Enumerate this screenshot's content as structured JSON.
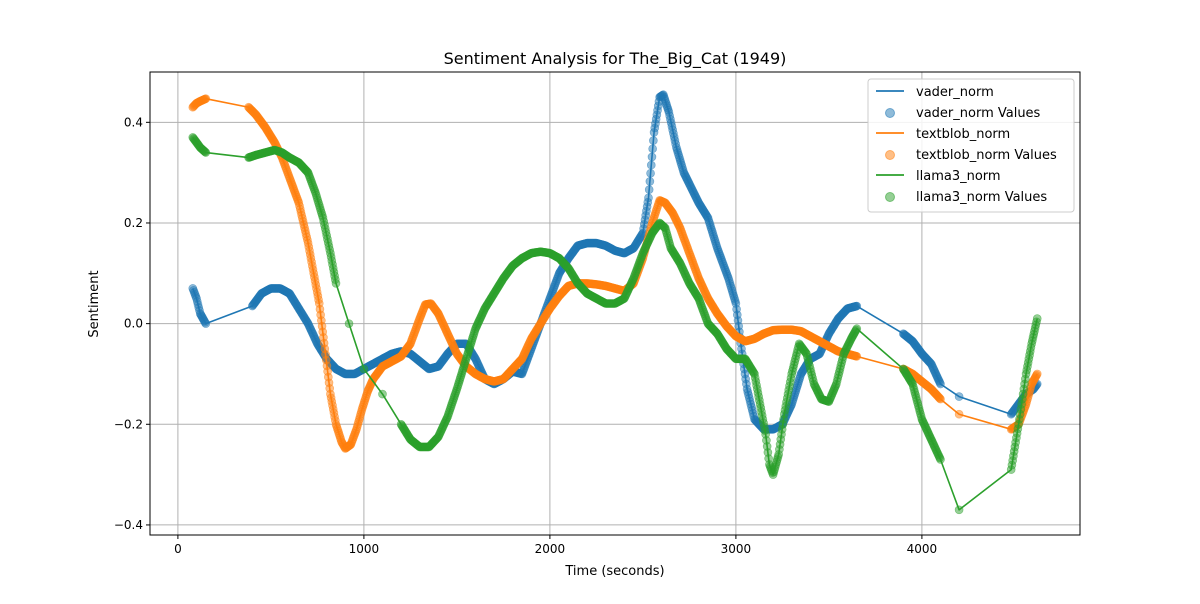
{
  "chart_data": {
    "type": "line",
    "title": "Sentiment Analysis for The_Big_Cat (1949)",
    "xlabel": "Time (seconds)",
    "ylabel": "Sentiment",
    "xlim": [
      -150,
      4850
    ],
    "ylim": [
      -0.42,
      0.5
    ],
    "xticks": [
      0,
      1000,
      2000,
      3000,
      4000
    ],
    "xtick_labels": [
      "0",
      "1000",
      "2000",
      "3000",
      "4000"
    ],
    "yticks": [
      -0.4,
      -0.2,
      0.0,
      0.2,
      0.4
    ],
    "ytick_labels": [
      "−0.4",
      "−0.2",
      "0.0",
      "0.2",
      "0.4"
    ],
    "grid": true,
    "legend_position": "top-right",
    "legend": [
      "vader_norm",
      "vader_norm Values",
      "textblob_norm",
      "textblob_norm Values",
      "llama3_norm",
      "llama3_norm Values"
    ],
    "series": [
      {
        "name": "vader_norm",
        "color": "#1f77b4",
        "x": [
          80,
          100,
          120,
          150,
          400,
          450,
          500,
          550,
          600,
          650,
          700,
          750,
          800,
          850,
          900,
          950,
          1000,
          1050,
          1100,
          1150,
          1200,
          1250,
          1300,
          1350,
          1400,
          1450,
          1500,
          1550,
          1600,
          1650,
          1700,
          1750,
          1800,
          1850,
          1900,
          1950,
          2000,
          2050,
          2100,
          2150,
          2200,
          2250,
          2300,
          2350,
          2400,
          2450,
          2500,
          2530,
          2560,
          2590,
          2610,
          2640,
          2680,
          2720,
          2760,
          2800,
          2850,
          2900,
          2960,
          3000,
          3030,
          3060,
          3100,
          3150,
          3200,
          3250,
          3300,
          3350,
          3400,
          3450,
          3500,
          3550,
          3600,
          3650,
          3900,
          3950,
          4000,
          4050,
          4100,
          4200,
          4480,
          4520,
          4560,
          4600,
          4620
        ],
        "y": [
          0.07,
          0.05,
          0.02,
          0.0,
          0.035,
          0.06,
          0.07,
          0.07,
          0.06,
          0.03,
          0.0,
          -0.04,
          -0.07,
          -0.09,
          -0.1,
          -0.1,
          -0.09,
          -0.08,
          -0.07,
          -0.06,
          -0.055,
          -0.06,
          -0.075,
          -0.09,
          -0.085,
          -0.06,
          -0.04,
          -0.04,
          -0.07,
          -0.11,
          -0.12,
          -0.11,
          -0.095,
          -0.1,
          -0.05,
          0.0,
          0.05,
          0.1,
          0.13,
          0.155,
          0.16,
          0.16,
          0.155,
          0.145,
          0.14,
          0.15,
          0.18,
          0.25,
          0.38,
          0.45,
          0.455,
          0.42,
          0.35,
          0.3,
          0.27,
          0.24,
          0.21,
          0.15,
          0.09,
          0.04,
          -0.05,
          -0.13,
          -0.19,
          -0.21,
          -0.21,
          -0.2,
          -0.16,
          -0.1,
          -0.07,
          -0.06,
          -0.02,
          0.01,
          0.03,
          0.035,
          -0.02,
          -0.035,
          -0.06,
          -0.08,
          -0.12,
          -0.145,
          -0.18,
          -0.16,
          -0.14,
          -0.13,
          -0.12
        ]
      },
      {
        "name": "textblob_norm",
        "color": "#ff7f0e",
        "x": [
          80,
          100,
          120,
          150,
          380,
          420,
          470,
          520,
          560,
          600,
          650,
          700,
          730,
          760,
          790,
          820,
          850,
          880,
          900,
          930,
          960,
          990,
          1020,
          1050,
          1100,
          1150,
          1200,
          1250,
          1300,
          1330,
          1360,
          1400,
          1450,
          1500,
          1550,
          1600,
          1650,
          1700,
          1750,
          1800,
          1850,
          1900,
          1950,
          2000,
          2050,
          2100,
          2150,
          2200,
          2250,
          2300,
          2350,
          2400,
          2450,
          2500,
          2550,
          2590,
          2620,
          2660,
          2700,
          2750,
          2800,
          2850,
          2900,
          2950,
          3000,
          3050,
          3100,
          3150,
          3200,
          3250,
          3300,
          3350,
          3400,
          3450,
          3500,
          3550,
          3600,
          3650,
          3900,
          3950,
          4000,
          4050,
          4100,
          4200,
          4480,
          4520,
          4560,
          4590,
          4620
        ],
        "y": [
          0.43,
          0.438,
          0.442,
          0.447,
          0.43,
          0.415,
          0.39,
          0.36,
          0.33,
          0.29,
          0.24,
          0.16,
          0.1,
          0.04,
          -0.05,
          -0.14,
          -0.2,
          -0.235,
          -0.248,
          -0.24,
          -0.21,
          -0.17,
          -0.135,
          -0.11,
          -0.085,
          -0.075,
          -0.065,
          -0.04,
          0.01,
          0.038,
          0.04,
          0.02,
          -0.02,
          -0.06,
          -0.085,
          -0.1,
          -0.11,
          -0.115,
          -0.11,
          -0.09,
          -0.07,
          -0.03,
          0.0,
          0.03,
          0.055,
          0.075,
          0.08,
          0.08,
          0.078,
          0.075,
          0.07,
          0.065,
          0.08,
          0.13,
          0.2,
          0.245,
          0.24,
          0.22,
          0.19,
          0.14,
          0.09,
          0.05,
          0.02,
          -0.005,
          -0.025,
          -0.035,
          -0.03,
          -0.02,
          -0.013,
          -0.012,
          -0.012,
          -0.015,
          -0.025,
          -0.035,
          -0.045,
          -0.055,
          -0.06,
          -0.065,
          -0.09,
          -0.1,
          -0.115,
          -0.13,
          -0.15,
          -0.18,
          -0.21,
          -0.2,
          -0.16,
          -0.12,
          -0.1
        ]
      },
      {
        "name": "llama3_norm",
        "color": "#2ca02c",
        "x": [
          80,
          100,
          120,
          150,
          380,
          420,
          470,
          520,
          560,
          600,
          650,
          700,
          740,
          780,
          820,
          850,
          920,
          1000,
          1100,
          1200,
          1250,
          1300,
          1350,
          1400,
          1450,
          1500,
          1550,
          1600,
          1650,
          1700,
          1750,
          1800,
          1850,
          1900,
          1950,
          2000,
          2050,
          2100,
          2150,
          2200,
          2250,
          2300,
          2350,
          2400,
          2450,
          2500,
          2550,
          2590,
          2620,
          2650,
          2700,
          2750,
          2800,
          2850,
          2900,
          2950,
          3000,
          3050,
          3100,
          3130,
          3160,
          3180,
          3200,
          3230,
          3260,
          3300,
          3340,
          3380,
          3420,
          3460,
          3500,
          3540,
          3580,
          3620,
          3650,
          3900,
          3950,
          4000,
          4050,
          4100,
          4200,
          4480,
          4520,
          4560,
          4590,
          4620
        ],
        "y": [
          0.37,
          0.36,
          0.35,
          0.34,
          0.33,
          0.335,
          0.34,
          0.345,
          0.34,
          0.33,
          0.32,
          0.3,
          0.26,
          0.21,
          0.14,
          0.08,
          0.0,
          -0.09,
          -0.14,
          -0.2,
          -0.23,
          -0.245,
          -0.245,
          -0.225,
          -0.185,
          -0.13,
          -0.07,
          -0.01,
          0.03,
          0.06,
          0.09,
          0.115,
          0.13,
          0.14,
          0.143,
          0.14,
          0.13,
          0.11,
          0.08,
          0.06,
          0.05,
          0.04,
          0.04,
          0.05,
          0.09,
          0.14,
          0.18,
          0.2,
          0.19,
          0.15,
          0.12,
          0.08,
          0.05,
          0.0,
          -0.02,
          -0.05,
          -0.07,
          -0.07,
          -0.1,
          -0.16,
          -0.22,
          -0.28,
          -0.3,
          -0.26,
          -0.18,
          -0.1,
          -0.04,
          -0.06,
          -0.12,
          -0.15,
          -0.155,
          -0.12,
          -0.06,
          -0.03,
          -0.01,
          -0.09,
          -0.12,
          -0.19,
          -0.23,
          -0.27,
          -0.37,
          -0.29,
          -0.2,
          -0.1,
          -0.04,
          0.01
        ]
      }
    ]
  }
}
